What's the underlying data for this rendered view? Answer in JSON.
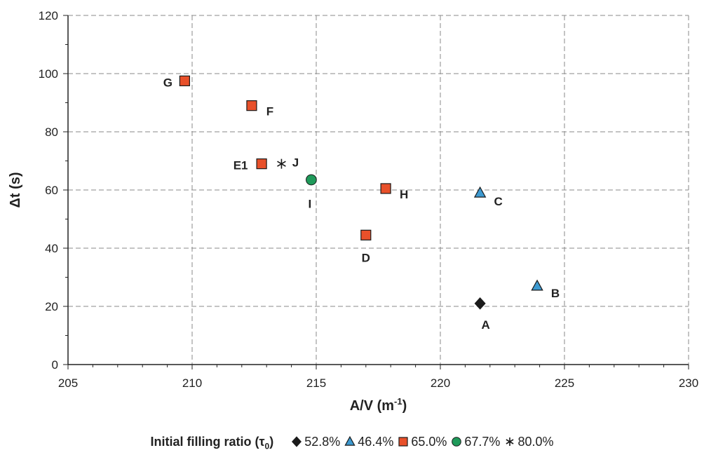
{
  "chart_data": {
    "type": "scatter",
    "xlabel": "A/V (m",
    "xlabel_sup": "-1",
    "xlabel_end": ")",
    "ylabel": "Δt (s)",
    "xlim": [
      205,
      230
    ],
    "ylim": [
      0,
      120
    ],
    "xticks": [
      205,
      210,
      215,
      220,
      225,
      230
    ],
    "yticks": [
      0,
      20,
      40,
      60,
      80,
      100,
      120
    ],
    "grid": true,
    "legend": {
      "title": "Initial filling ratio (τ",
      "title_sub": "0",
      "title_end": ")",
      "placement": "bottom"
    },
    "series": [
      {
        "name": "52.8%",
        "marker": "diamond",
        "color": "#1a1a1a",
        "points": [
          {
            "label": "A",
            "x": 221.6,
            "y": 21
          }
        ]
      },
      {
        "name": "46.4%",
        "marker": "triangle",
        "color": "#3d9ad1",
        "points": [
          {
            "label": "B",
            "x": 223.9,
            "y": 27
          },
          {
            "label": "C",
            "x": 221.6,
            "y": 59
          }
        ]
      },
      {
        "name": "65.0%",
        "marker": "square",
        "color": "#e8502a",
        "points": [
          {
            "label": "D",
            "x": 217.0,
            "y": 44.5
          },
          {
            "label": "E1",
            "x": 212.8,
            "y": 69
          },
          {
            "label": "F",
            "x": 212.4,
            "y": 89
          },
          {
            "label": "G",
            "x": 209.7,
            "y": 97.5
          },
          {
            "label": "H",
            "x": 217.8,
            "y": 60.5
          }
        ]
      },
      {
        "name": "67.7%",
        "marker": "circle",
        "color": "#1f9a5a",
        "points": [
          {
            "label": "I",
            "x": 214.8,
            "y": 63.5
          }
        ]
      },
      {
        "name": "80.0%",
        "marker": "asterisk",
        "color": "#1a1a1a",
        "points": [
          {
            "label": "J",
            "x": 213.6,
            "y": 69
          }
        ]
      }
    ]
  }
}
